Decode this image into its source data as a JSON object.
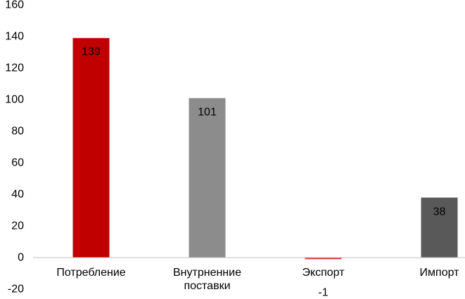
{
  "chart_data": {
    "type": "bar",
    "categories": [
      "Потребление",
      "Внутрненние поставки",
      "Экспорт",
      "Импорт"
    ],
    "values": [
      139,
      101,
      -1,
      38
    ],
    "colors": [
      "#c00000",
      "#8c8c8c",
      "#e03030",
      "#595959"
    ],
    "ylim": [
      -20,
      160
    ],
    "yticks": [
      -20,
      0,
      20,
      40,
      60,
      80,
      100,
      120,
      140,
      160
    ],
    "grid": false
  }
}
